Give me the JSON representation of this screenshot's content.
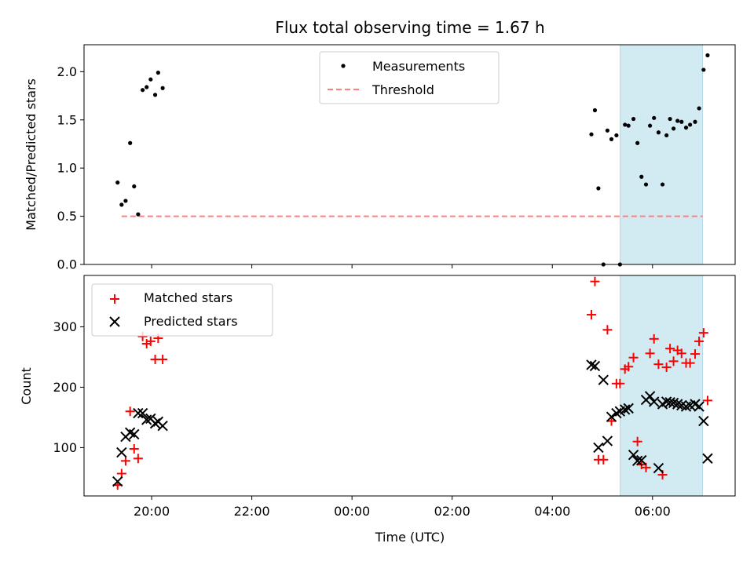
{
  "chart_data": {
    "title": "Flux total observing time = 1.67 h",
    "xlabel": "Time (UTC)",
    "x_tick_labels": [
      "20:00",
      "22:00",
      "00:00",
      "02:00",
      "04:00",
      "06:00"
    ],
    "x_ticks_hours": [
      20,
      22,
      24,
      26,
      28,
      30
    ],
    "x_range_hours": [
      18.65,
      31.65
    ],
    "shaded_interval_hours": [
      29.35,
      31.0
    ],
    "shade_color": "#add8e6",
    "panels": [
      {
        "type": "scatter",
        "ylabel": "Matched/Predicted stars",
        "ylim": [
          0,
          2.28
        ],
        "y_ticks": [
          0.0,
          0.5,
          1.0,
          1.5,
          2.0
        ],
        "y_tick_labels": [
          "0.0",
          "0.5",
          "1.0",
          "1.5",
          "2.0"
        ],
        "legend_position": "upper center",
        "threshold": {
          "name": "Threshold",
          "value": 0.5,
          "x_range_hours": [
            19.4,
            31.0
          ],
          "color": "#ff7f7f"
        },
        "series": [
          {
            "name": "Measurements",
            "color": "#000000",
            "marker": "dot",
            "points": [
              [
                19.32,
                0.85
              ],
              [
                19.4,
                0.62
              ],
              [
                19.48,
                0.66
              ],
              [
                19.57,
                1.26
              ],
              [
                19.65,
                0.81
              ],
              [
                19.73,
                0.52
              ],
              [
                19.82,
                1.81
              ],
              [
                19.9,
                1.84
              ],
              [
                19.98,
                1.92
              ],
              [
                20.07,
                1.76
              ],
              [
                20.13,
                1.99
              ],
              [
                20.22,
                1.83
              ],
              [
                28.78,
                1.35
              ],
              [
                28.85,
                1.6
              ],
              [
                28.92,
                0.79
              ],
              [
                29.02,
                0.0
              ],
              [
                29.1,
                1.39
              ],
              [
                29.18,
                1.3
              ],
              [
                29.28,
                1.34
              ],
              [
                29.35,
                0.0
              ],
              [
                29.45,
                1.45
              ],
              [
                29.52,
                1.44
              ],
              [
                29.62,
                1.51
              ],
              [
                29.7,
                1.26
              ],
              [
                29.78,
                0.91
              ],
              [
                29.87,
                0.83
              ],
              [
                29.95,
                1.44
              ],
              [
                30.03,
                1.52
              ],
              [
                30.12,
                1.37
              ],
              [
                30.2,
                0.83
              ],
              [
                30.28,
                1.34
              ],
              [
                30.35,
                1.51
              ],
              [
                30.42,
                1.41
              ],
              [
                30.5,
                1.49
              ],
              [
                30.58,
                1.48
              ],
              [
                30.67,
                1.42
              ],
              [
                30.75,
                1.45
              ],
              [
                30.85,
                1.48
              ],
              [
                30.93,
                1.62
              ],
              [
                31.02,
                2.02
              ],
              [
                31.1,
                2.17
              ]
            ]
          }
        ]
      },
      {
        "type": "scatter",
        "ylabel": "Count",
        "ylim": [
          20,
          385
        ],
        "y_ticks": [
          100,
          200,
          300
        ],
        "y_tick_labels": [
          "100",
          "200",
          "300"
        ],
        "legend_position": "upper left",
        "series": [
          {
            "name": "Matched stars",
            "color": "#ff0000",
            "marker": "+",
            "points": [
              [
                19.32,
                38
              ],
              [
                19.4,
                57
              ],
              [
                19.48,
                78
              ],
              [
                19.57,
                160
              ],
              [
                19.65,
                98
              ],
              [
                19.73,
                82
              ],
              [
                19.82,
                284
              ],
              [
                19.9,
                272
              ],
              [
                19.98,
                276
              ],
              [
                20.07,
                246
              ],
              [
                20.13,
                281
              ],
              [
                20.22,
                246
              ],
              [
                28.78,
                320
              ],
              [
                28.85,
                375
              ],
              [
                28.92,
                80
              ],
              [
                29.02,
                80
              ],
              [
                29.1,
                295
              ],
              [
                29.18,
                144
              ],
              [
                29.28,
                206
              ],
              [
                29.35,
                206
              ],
              [
                29.45,
                230
              ],
              [
                29.52,
                234
              ],
              [
                29.62,
                249
              ],
              [
                29.7,
                110
              ],
              [
                29.78,
                72
              ],
              [
                29.87,
                67
              ],
              [
                29.95,
                256
              ],
              [
                30.03,
                280
              ],
              [
                30.12,
                238
              ],
              [
                30.2,
                55
              ],
              [
                30.28,
                233
              ],
              [
                30.35,
                264
              ],
              [
                30.42,
                243
              ],
              [
                30.5,
                261
              ],
              [
                30.58,
                256
              ],
              [
                30.67,
                240
              ],
              [
                30.75,
                240
              ],
              [
                30.85,
                255
              ],
              [
                30.93,
                276
              ],
              [
                31.02,
                290
              ],
              [
                31.1,
                178
              ]
            ]
          },
          {
            "name": "Predicted stars",
            "color": "#000000",
            "marker": "x",
            "points": [
              [
                19.32,
                44
              ],
              [
                19.4,
                92
              ],
              [
                19.48,
                118
              ],
              [
                19.57,
                125
              ],
              [
                19.65,
                122
              ],
              [
                19.73,
                157
              ],
              [
                19.82,
                157
              ],
              [
                19.9,
                146
              ],
              [
                19.98,
                148
              ],
              [
                20.07,
                140
              ],
              [
                20.13,
                143
              ],
              [
                20.22,
                136
              ],
              [
                28.78,
                237
              ],
              [
                28.85,
                235
              ],
              [
                28.92,
                100
              ],
              [
                29.02,
                212
              ],
              [
                29.1,
                111
              ],
              [
                29.18,
                151
              ],
              [
                29.28,
                157
              ],
              [
                29.35,
                160
              ],
              [
                29.45,
                163
              ],
              [
                29.52,
                165
              ],
              [
                29.62,
                88
              ],
              [
                29.7,
                78
              ],
              [
                29.78,
                79
              ],
              [
                29.87,
                179
              ],
              [
                29.95,
                185
              ],
              [
                30.03,
                176
              ],
              [
                30.12,
                66
              ],
              [
                30.2,
                172
              ],
              [
                30.28,
                176
              ],
              [
                30.35,
                175
              ],
              [
                30.42,
                174
              ],
              [
                30.5,
                172
              ],
              [
                30.58,
                170
              ],
              [
                30.67,
                168
              ],
              [
                30.75,
                170
              ],
              [
                30.85,
                172
              ],
              [
                30.93,
                168
              ],
              [
                31.02,
                144
              ],
              [
                31.1,
                82
              ]
            ]
          }
        ]
      }
    ]
  }
}
